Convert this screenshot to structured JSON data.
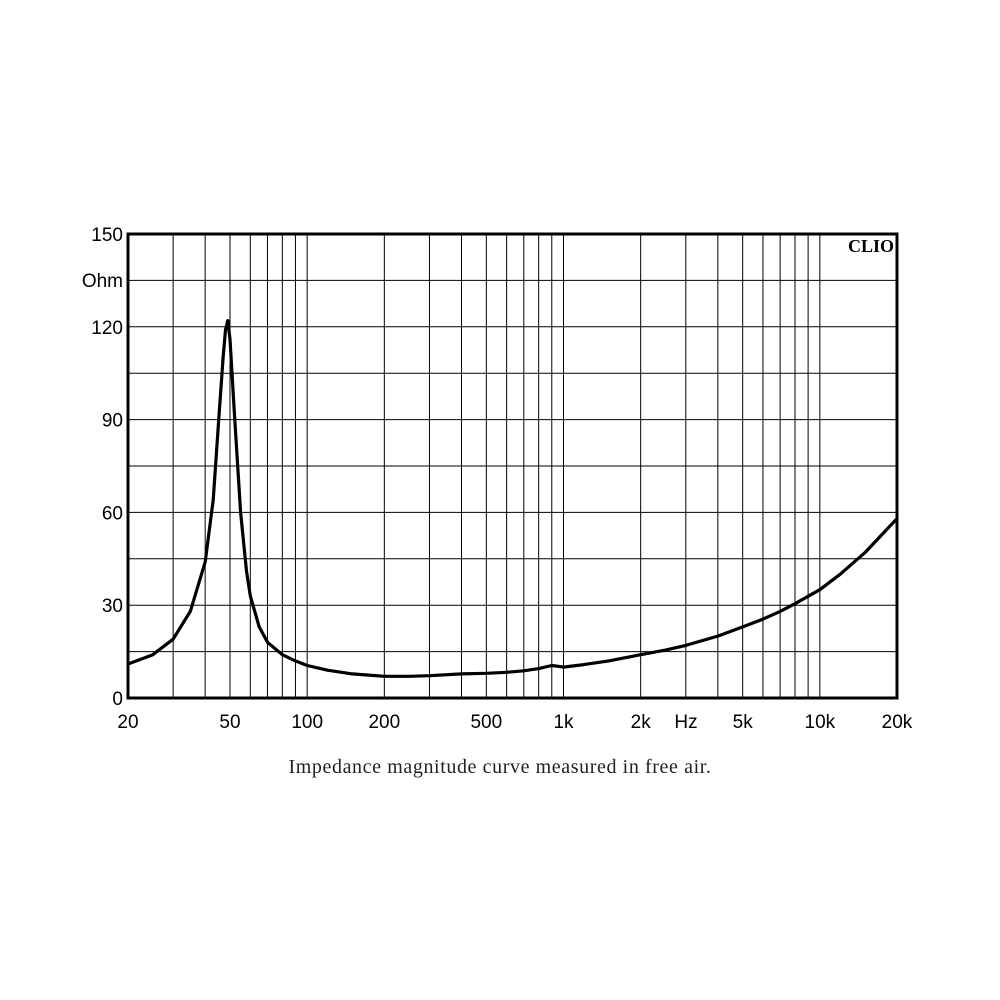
{
  "caption": "Impedance magnitude curve measured in free air.",
  "chart_data": {
    "type": "line",
    "title": "",
    "xlabel": "Hz",
    "ylabel": "Ohm",
    "brand": "CLIO",
    "x_scale": "log",
    "xlim": [
      20,
      20000
    ],
    "ylim": [
      0,
      150
    ],
    "grid": true,
    "x_tick_labels": [
      {
        "value": 20,
        "label": "20"
      },
      {
        "value": 50,
        "label": "50"
      },
      {
        "value": 100,
        "label": "100"
      },
      {
        "value": 200,
        "label": "200"
      },
      {
        "value": 500,
        "label": "500"
      },
      {
        "value": 1000,
        "label": "1k"
      },
      {
        "value": 2000,
        "label": "2k"
      },
      {
        "value": 5000,
        "label": "5k"
      },
      {
        "value": 10000,
        "label": "10k"
      },
      {
        "value": 20000,
        "label": "20k"
      }
    ],
    "y_tick_labels": [
      {
        "value": 0,
        "label": "0"
      },
      {
        "value": 30,
        "label": "30"
      },
      {
        "value": 60,
        "label": "60"
      },
      {
        "value": 90,
        "label": "90"
      },
      {
        "value": 120,
        "label": "120"
      },
      {
        "value": 150,
        "label": "150"
      }
    ],
    "series": [
      {
        "color": "#000000",
        "x": [
          20,
          25,
          30,
          35,
          40,
          43,
          45,
          47,
          48,
          49,
          50,
          52,
          55,
          58,
          60,
          65,
          70,
          80,
          90,
          100,
          120,
          150,
          200,
          250,
          300,
          400,
          500,
          600,
          700,
          800,
          900,
          1000,
          1200,
          1500,
          2000,
          2500,
          3000,
          4000,
          5000,
          6000,
          7000,
          8000,
          10000,
          12000,
          15000,
          18000,
          20000
        ],
        "y": [
          11,
          14,
          19,
          28,
          44,
          64,
          88,
          110,
          119,
          122,
          116,
          92,
          60,
          41,
          33,
          23,
          18,
          14,
          12,
          10.5,
          9,
          7.8,
          7,
          7,
          7.2,
          7.8,
          8,
          8.3,
          8.8,
          9.5,
          10.5,
          10,
          10.8,
          12,
          14,
          15.5,
          17,
          20,
          23,
          25.5,
          28,
          30.5,
          35,
          40,
          47,
          54,
          58
        ]
      }
    ]
  }
}
